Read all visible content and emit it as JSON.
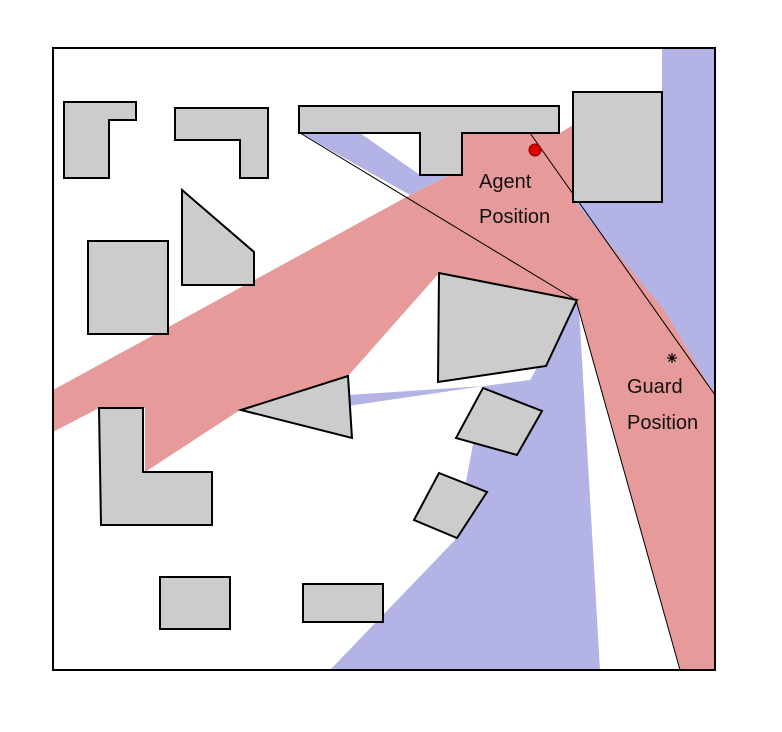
{
  "labels": {
    "agent_line1": "Agent",
    "agent_line2": "Position",
    "guard_line1": "Guard",
    "guard_line2": "Position"
  },
  "colors": {
    "agent_visibility": "#e69a9a",
    "guard_visibility": "#b3b3e6",
    "obstacle": "#cccccc",
    "outline": "#000000",
    "agent_marker": "#e00000"
  },
  "icons": {
    "agent": "red-dot-icon",
    "guard": "asterisk-icon"
  }
}
